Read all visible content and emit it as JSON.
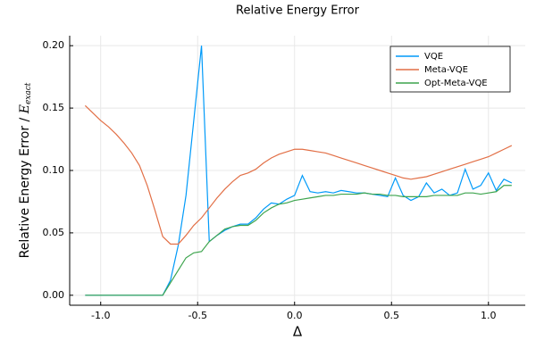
{
  "chart_data": {
    "type": "line",
    "title": "Relative Energy Error",
    "xlabel": "Δ",
    "ylabel": {
      "text": "Relative Energy Error / ",
      "math": "E",
      "subscript": "exact"
    },
    "x": [
      -1.08,
      -1.04,
      -1.0,
      -0.96,
      -0.92,
      -0.88,
      -0.84,
      -0.8,
      -0.76,
      -0.72,
      -0.68,
      -0.64,
      -0.6,
      -0.56,
      -0.52,
      -0.48,
      -0.44,
      -0.4,
      -0.36,
      -0.32,
      -0.28,
      -0.24,
      -0.2,
      -0.16,
      -0.12,
      -0.08,
      -0.04,
      0.0,
      0.04,
      0.08,
      0.12,
      0.16,
      0.2,
      0.24,
      0.28,
      0.32,
      0.36,
      0.4,
      0.44,
      0.48,
      0.52,
      0.56,
      0.6,
      0.64,
      0.68,
      0.72,
      0.76,
      0.8,
      0.84,
      0.88,
      0.92,
      0.96,
      1.0,
      1.04,
      1.08,
      1.12
    ],
    "series": [
      {
        "name": "VQE",
        "color": "#009af9",
        "values": [
          0,
          0,
          0,
          0,
          0,
          0,
          0,
          0,
          0,
          0,
          0,
          0.012,
          0.04,
          0.08,
          0.14,
          0.2,
          0.043,
          0.048,
          0.052,
          0.055,
          0.057,
          0.057,
          0.062,
          0.069,
          0.074,
          0.073,
          0.077,
          0.08,
          0.096,
          0.083,
          0.082,
          0.083,
          0.082,
          0.084,
          0.083,
          0.082,
          0.082,
          0.081,
          0.08,
          0.079,
          0.094,
          0.08,
          0.076,
          0.079,
          0.09,
          0.082,
          0.085,
          0.08,
          0.082,
          0.101,
          0.085,
          0.088,
          0.098,
          0.084,
          0.093,
          0.09
        ]
      },
      {
        "name": "Meta-VQE",
        "color": "#e26f46",
        "values": [
          0.152,
          0.146,
          0.14,
          0.135,
          0.129,
          0.122,
          0.114,
          0.104,
          0.088,
          0.068,
          0.047,
          0.041,
          0.041,
          0.048,
          0.056,
          0.062,
          0.07,
          0.078,
          0.085,
          0.091,
          0.096,
          0.098,
          0.101,
          0.106,
          0.11,
          0.113,
          0.115,
          0.117,
          0.117,
          0.116,
          0.115,
          0.114,
          0.112,
          0.11,
          0.108,
          0.106,
          0.104,
          0.102,
          0.1,
          0.098,
          0.096,
          0.094,
          0.093,
          0.094,
          0.095,
          0.097,
          0.099,
          0.101,
          0.103,
          0.105,
          0.107,
          0.109,
          0.111,
          0.114,
          0.117,
          0.12
        ]
      },
      {
        "name": "Opt-Meta-VQE",
        "color": "#3da44d",
        "values": [
          0,
          0,
          0,
          0,
          0,
          0,
          0,
          0,
          0,
          0,
          0,
          0.01,
          0.02,
          0.03,
          0.034,
          0.035,
          0.043,
          0.048,
          0.053,
          0.055,
          0.056,
          0.056,
          0.06,
          0.066,
          0.07,
          0.073,
          0.074,
          0.076,
          0.077,
          0.078,
          0.079,
          0.08,
          0.08,
          0.081,
          0.081,
          0.081,
          0.082,
          0.081,
          0.081,
          0.08,
          0.08,
          0.079,
          0.079,
          0.079,
          0.079,
          0.08,
          0.08,
          0.08,
          0.08,
          0.082,
          0.082,
          0.081,
          0.082,
          0.083,
          0.088,
          0.088
        ]
      }
    ],
    "xlim": [
      -1.16,
      1.19
    ],
    "ylim": [
      -0.008,
      0.208
    ],
    "xticks": [
      {
        "value": -1.0,
        "label": "-1.0"
      },
      {
        "value": -0.5,
        "label": "-0.5"
      },
      {
        "value": 0.0,
        "label": "0.0"
      },
      0.5,
      {
        "value": 1.0,
        "label": "1.0"
      }
    ],
    "yticks": [
      {
        "value": 0,
        "label": "0.00"
      },
      {
        "value": 0.05,
        "label": "0.05"
      },
      {
        "value": 0.1,
        "label": "0.10"
      },
      {
        "value": 0.15,
        "label": "0.15"
      },
      {
        "value": 0.2,
        "label": "0.20"
      }
    ],
    "grid": true,
    "legend": "top-right"
  }
}
